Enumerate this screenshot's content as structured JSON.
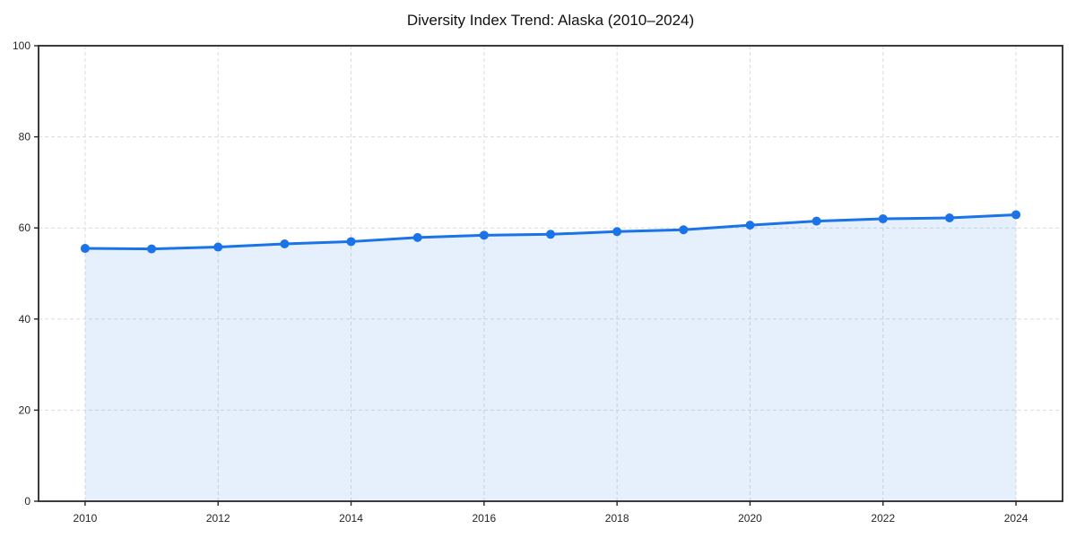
{
  "page": {
    "background": "#ffffff"
  },
  "chart_data": {
    "type": "area",
    "title": "Diversity Index Trend: Alaska (2010–2024)",
    "x": [
      2010,
      2011,
      2012,
      2013,
      2014,
      2015,
      2016,
      2017,
      2018,
      2019,
      2020,
      2021,
      2022,
      2023,
      2024
    ],
    "series": [
      {
        "name": "Diversity Index",
        "values": [
          55.5,
          55.4,
          55.8,
          56.5,
          57.0,
          57.9,
          58.4,
          58.6,
          59.2,
          59.6,
          60.6,
          61.5,
          62.0,
          62.2,
          62.9
        ]
      }
    ],
    "xlabel": "",
    "ylabel": "",
    "xlim": [
      2009.3,
      2024.7
    ],
    "ylim": [
      0,
      100
    ],
    "xticks": [
      2010,
      2012,
      2014,
      2016,
      2018,
      2020,
      2022,
      2024
    ],
    "yticks": [
      0,
      20,
      40,
      60,
      80,
      100
    ],
    "grid": true,
    "grid_style": "dashed",
    "legend": false,
    "marker": "circle",
    "colors": {
      "line": "#1a73e8",
      "marker": "#1a73e8",
      "fill": "rgba(26,115,232,0.11)",
      "grid": "#dcdcdc",
      "spine": "#262626",
      "tick_label": "#262626",
      "title": "#111111",
      "background": "#ffffff"
    }
  }
}
